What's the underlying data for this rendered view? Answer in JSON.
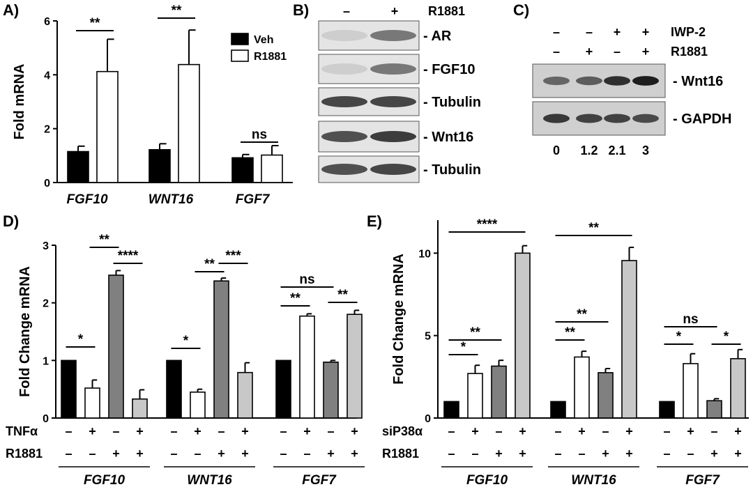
{
  "chart_data": [
    {
      "panel": "A)",
      "type": "bar",
      "ylabel": "Fold mRNA",
      "ylim": [
        0,
        6
      ],
      "yticks": [
        "0",
        "2",
        "4",
        "6"
      ],
      "categories": [
        "FGF10",
        "WNT16",
        "FGF7"
      ],
      "series": [
        {
          "name": "Veh",
          "color": "#000000",
          "values": [
            1.15,
            1.22,
            0.92
          ],
          "errors": [
            0.2,
            0.22,
            0.12
          ]
        },
        {
          "name": "R1881",
          "color": "#ffffff",
          "values": [
            4.12,
            4.38,
            1.02
          ],
          "errors": [
            1.2,
            1.28,
            0.35
          ]
        }
      ],
      "significance": [
        {
          "label": "**",
          "group": 0
        },
        {
          "label": "**",
          "group": 1
        },
        {
          "label": "ns",
          "group": 2
        }
      ],
      "legend": "top-right"
    },
    {
      "panel": "D)",
      "type": "bar",
      "ylabel": "Fold Change mRNA",
      "ylim": [
        0,
        3
      ],
      "yticks": [
        "0",
        "1",
        "2",
        "3"
      ],
      "categories": [
        "FGF10",
        "WNT16",
        "FGF7"
      ],
      "series": [
        {
          "values": [
            1.0,
            1.0,
            1.0
          ],
          "errors": [
            0,
            0,
            0
          ],
          "color": "#000000"
        },
        {
          "values": [
            0.52,
            0.45,
            1.77
          ],
          "errors": [
            0.14,
            0.05,
            0.04
          ],
          "color": "#ffffff"
        },
        {
          "values": [
            2.48,
            2.38,
            0.97
          ],
          "errors": [
            0.08,
            0.05,
            0.03
          ],
          "color": "#808080"
        },
        {
          "values": [
            0.33,
            0.79,
            1.8
          ],
          "errors": [
            0.16,
            0.17,
            0.07
          ],
          "color": "#c8c8c8"
        }
      ],
      "treatment_rows": [
        {
          "label": "TNFα",
          "signs": [
            "–",
            "+",
            "–",
            "+"
          ]
        },
        {
          "label": "R1881",
          "signs": [
            "–",
            "–",
            "+",
            "+"
          ]
        }
      ],
      "significance": [
        {
          "label": "*",
          "group": 0,
          "from": 0,
          "to": 1
        },
        {
          "label": "**",
          "group": 0,
          "from": 1,
          "to": 2
        },
        {
          "label": "****",
          "group": 0,
          "from": 2,
          "to": 3
        },
        {
          "label": "*",
          "group": 1,
          "from": 0,
          "to": 1
        },
        {
          "label": "**",
          "group": 1,
          "from": 1,
          "to": 2
        },
        {
          "label": "***",
          "group": 1,
          "from": 2,
          "to": 3
        },
        {
          "label": "**",
          "group": 2,
          "from": 0,
          "to": 1
        },
        {
          "label": "ns",
          "group": 2,
          "from": 0,
          "to": 2
        },
        {
          "label": "**",
          "group": 2,
          "from": 2,
          "to": 3
        }
      ]
    },
    {
      "panel": "E)",
      "type": "bar",
      "ylabel": "Fold Change mRNA",
      "ylim": [
        0,
        12
      ],
      "yticks": [
        "0",
        "5",
        "10"
      ],
      "categories": [
        "FGF10",
        "WNT16",
        "FGF7"
      ],
      "series": [
        {
          "values": [
            1.0,
            1.0,
            1.0
          ],
          "errors": [
            0,
            0,
            0
          ],
          "color": "#000000"
        },
        {
          "values": [
            2.7,
            3.7,
            3.3
          ],
          "errors": [
            0.5,
            0.35,
            0.6
          ],
          "color": "#ffffff"
        },
        {
          "values": [
            3.15,
            2.75,
            1.05
          ],
          "errors": [
            0.35,
            0.25,
            0.12
          ],
          "color": "#808080"
        },
        {
          "values": [
            10.0,
            9.55,
            3.6
          ],
          "errors": [
            0.45,
            0.8,
            0.55
          ],
          "color": "#c8c8c8"
        }
      ],
      "treatment_rows": [
        {
          "label": "siP38α",
          "signs": [
            "–",
            "+",
            "–",
            "+"
          ]
        },
        {
          "label": "R1881",
          "signs": [
            "–",
            "–",
            "+",
            "+"
          ]
        }
      ],
      "significance": [
        {
          "label": "*",
          "group": 0,
          "from": 0,
          "to": 1
        },
        {
          "label": "**",
          "group": 0,
          "from": 0,
          "to": 2
        },
        {
          "label": "****",
          "group": 0,
          "from": 0,
          "to": 3
        },
        {
          "label": "**",
          "group": 1,
          "from": 0,
          "to": 1
        },
        {
          "label": "**",
          "group": 1,
          "from": 0,
          "to": 2
        },
        {
          "label": "**",
          "group": 1,
          "from": 0,
          "to": 3
        },
        {
          "label": "*",
          "group": 2,
          "from": 0,
          "to": 1
        },
        {
          "label": "ns",
          "group": 2,
          "from": 0,
          "to": 2
        },
        {
          "label": "*",
          "group": 2,
          "from": 2,
          "to": 3
        }
      ]
    }
  ],
  "blot_b": {
    "panel": "B)",
    "header": [
      "–",
      "+",
      "R1881"
    ],
    "rows": [
      "- AR",
      "- FGF10",
      "- Tubulin",
      "- Wnt16",
      "- Tubulin"
    ]
  },
  "blot_c": {
    "panel": "C)",
    "treatments": [
      {
        "label": "IWP-2",
        "signs": [
          "–",
          "–",
          "+",
          "+"
        ]
      },
      {
        "label": "R1881",
        "signs": [
          "–",
          "+",
          "–",
          "+"
        ]
      }
    ],
    "rows": [
      "- Wnt16",
      "- GAPDH"
    ],
    "quant": [
      "0",
      "1.2",
      "2.1",
      "3"
    ]
  }
}
